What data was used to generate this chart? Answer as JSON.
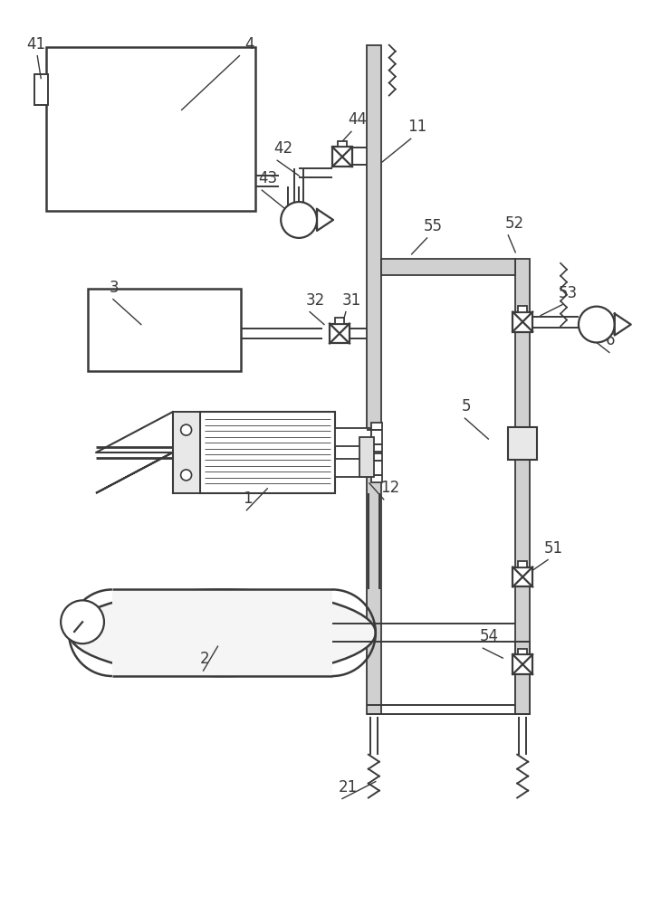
{
  "bg_color": "#ffffff",
  "lc": "#3a3a3a",
  "pipe_fill": "#d0d0d0",
  "fig_width": 7.3,
  "fig_height": 10.0,
  "dpi": 100
}
